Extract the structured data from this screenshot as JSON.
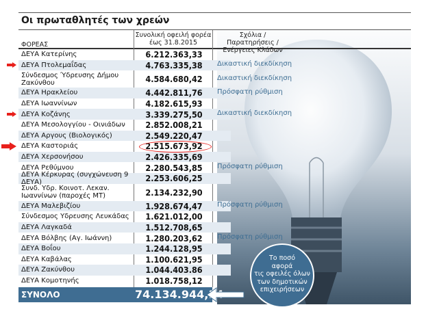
{
  "title": "Οι πρωταθλητές των χρεών",
  "headers": {
    "entity": "ΦΟΡΕΑΣ",
    "amount_l1": "Συνολική οφειλή φορέα",
    "amount_l2": "έως 31.8.2015",
    "comments_l1": "Σχόλια / Παρατηρήσεις /",
    "comments_l2": "Ενέργειες Κλάδων"
  },
  "rows": [
    {
      "name": "ΔΕΥΑ Κατερίνης",
      "amount": "6.212.363,33",
      "comment": ""
    },
    {
      "name": "ΔΕΥΑ Πτολεμαΐδας",
      "amount": "4.763.335,38",
      "comment": "Δικαστική διεκδίκηση",
      "marked": true
    },
    {
      "name": "Σύνδεσμος Ύδρευσης Δήμου Ζακύνθου",
      "amount": "4.584.680,42",
      "comment": "Δικαστική διεκδίκηση"
    },
    {
      "name": "ΔΕΥΑ Ηρακλείου",
      "amount": "4.442.811,76",
      "comment": "Πρόσφατη ρύθμιση"
    },
    {
      "name": "ΔΕΥΑ Ιωαννίνων",
      "amount": "4.182.615,93",
      "comment": ""
    },
    {
      "name": "ΔΕΥΑ Κοζάνης",
      "amount": "3.339.275,50",
      "comment": "Δικαστική διεκδίκηση",
      "marked": true
    },
    {
      "name": "ΔΕΥΑ Μεσολογγίου - Οινιάδων",
      "amount": "2.852.008,21",
      "comment": ""
    },
    {
      "name": "ΔΕΥΑ Αργους (Βιολογικός)",
      "amount": "2.549.220,47",
      "comment": ""
    },
    {
      "name": "ΔΕΥΑ Καστοριάς",
      "amount": "2.515.673,92",
      "comment": "",
      "marked": true,
      "circled": true
    },
    {
      "name": "ΔΕΥΑ Χερσονήσου",
      "amount": "2.426.335,69",
      "comment": ""
    },
    {
      "name": "ΔΕΥΑ Ρεθύμνου",
      "amount": "2.280.543,85",
      "comment": "Πρόσφατη ρύθμιση"
    },
    {
      "name": "ΔΕΥΑ Κέρκυρας (συγχώνευση 9 ΔΕΥΑ)",
      "amount": "2.253.606,25",
      "comment": ""
    },
    {
      "name": "Συνδ. Υδρ. Κοινοτ. Λεκαν. Ιωαννίνων (παροχές ΜΤ)",
      "amount": "2.134.232,90",
      "comment": ""
    },
    {
      "name": "ΔΕΥΑ Μαλεβιζίου",
      "amount": "1.928.674,47",
      "comment": "Πρόσφατη ρύθμιση"
    },
    {
      "name": "Σύνδεσμος Υδρευσης Λευκάδας",
      "amount": "1.621.012,00",
      "comment": ""
    },
    {
      "name": "ΔΕΥΑ Λαγκαδά",
      "amount": "1.512.708,65",
      "comment": ""
    },
    {
      "name": "ΔΕΥΑ Βόλβης (Αγ. Ιωάννη)",
      "amount": "1.280.203,62",
      "comment": "Πρόσφατη ρύθμιση"
    },
    {
      "name": "ΔΕΥΑ Βοΐου",
      "amount": "1.244.128,95",
      "comment": ""
    },
    {
      "name": "ΔΕΥΑ Καβάλας",
      "amount": "1.100.621,95",
      "comment": ""
    },
    {
      "name": "ΔΕΥΑ Ζακύνθου",
      "amount": "1.044.403.86",
      "comment": ""
    },
    {
      "name": "ΔΕΥΑ Κομοτηνής",
      "amount": "1.018.758,12",
      "comment": ""
    }
  ],
  "total": {
    "label": "ΣΥΝΟΛΟ",
    "amount": "74.134.944,14"
  },
  "bubble": {
    "l1": "Το ποσό",
    "l2": "αφορά",
    "l3": "τις οφειλές όλων",
    "l4": "των δημοτικών",
    "l5": "επιχειρήσεων"
  },
  "colors": {
    "accent": "#3f6d92",
    "shade": "#e4ebf2",
    "marker": "#e8201c",
    "comment": "#3e6e93"
  }
}
